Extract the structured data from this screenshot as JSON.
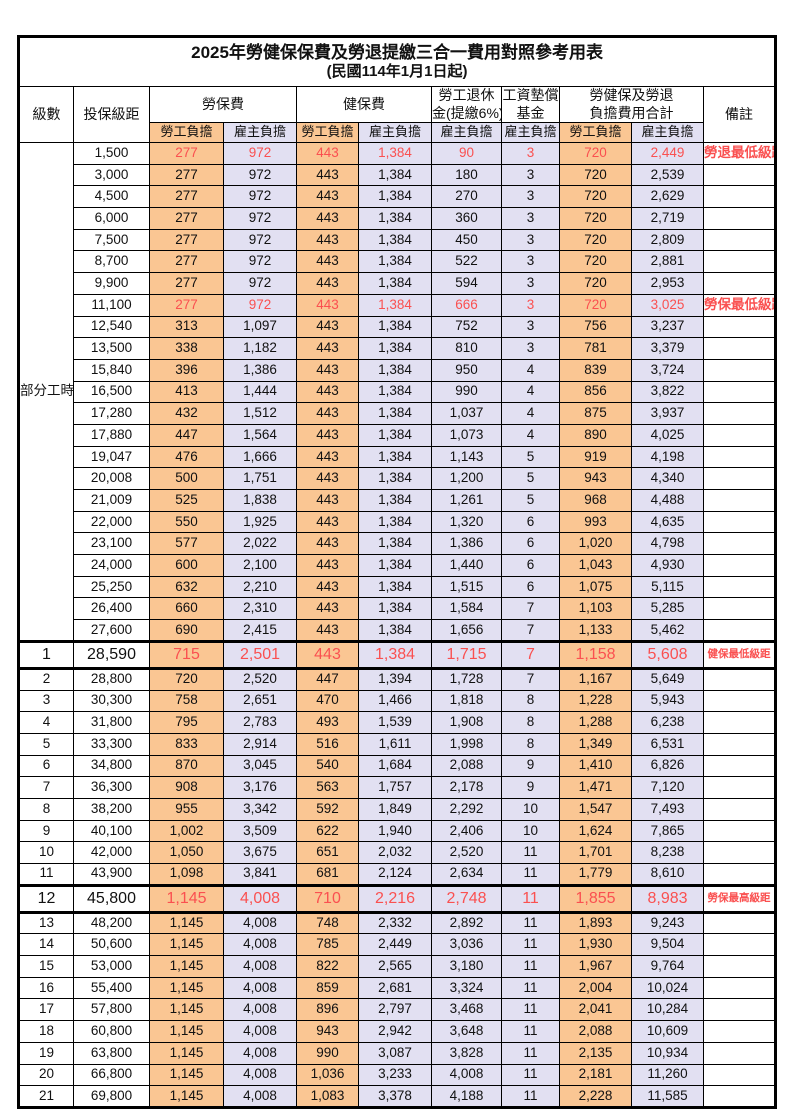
{
  "title": "2025年勞健保保費及勞退提繳三合一費用對照參考用表",
  "subtitle": "(民國114年1月1日起)",
  "colors": {
    "employee_bg": "#FAC693",
    "employer_bg": "#E2E0F2",
    "highlight_text": "#FA5050",
    "border": "#000000"
  },
  "header": {
    "level": "級數",
    "salary": "投保級距",
    "groups": {
      "labor": "勞保費",
      "health": "健保費",
      "pension_l1": "勞工退休",
      "pension_l2": "金(提繳6%)",
      "wagefund_l1": "工資墊償",
      "wagefund_l2": "基金",
      "total_l1": "勞健保及勞退",
      "total_l2": "負擔費用合計",
      "note": "備註"
    },
    "sub": {
      "employee": "勞工負擔",
      "employer": "雇主負擔"
    }
  },
  "table": {
    "part_time_label": "部分工時",
    "part_time_row_span": 23,
    "rows": [
      {
        "level": "",
        "salary": "1,500",
        "labor_employee": "277",
        "labor_employer": "972",
        "health_employee": "443",
        "health_employer": "1,384",
        "pension_employer": "90",
        "wagefund_employer": "3",
        "total_employee": "720",
        "total_employer": "2,449",
        "note": "勞退最低級距",
        "red": true
      },
      {
        "level": "",
        "salary": "3,000",
        "labor_employee": "277",
        "labor_employer": "972",
        "health_employee": "443",
        "health_employer": "1,384",
        "pension_employer": "180",
        "wagefund_employer": "3",
        "total_employee": "720",
        "total_employer": "2,539"
      },
      {
        "level": "",
        "salary": "4,500",
        "labor_employee": "277",
        "labor_employer": "972",
        "health_employee": "443",
        "health_employer": "1,384",
        "pension_employer": "270",
        "wagefund_employer": "3",
        "total_employee": "720",
        "total_employer": "2,629"
      },
      {
        "level": "",
        "salary": "6,000",
        "labor_employee": "277",
        "labor_employer": "972",
        "health_employee": "443",
        "health_employer": "1,384",
        "pension_employer": "360",
        "wagefund_employer": "3",
        "total_employee": "720",
        "total_employer": "2,719"
      },
      {
        "level": "",
        "salary": "7,500",
        "labor_employee": "277",
        "labor_employer": "972",
        "health_employee": "443",
        "health_employer": "1,384",
        "pension_employer": "450",
        "wagefund_employer": "3",
        "total_employee": "720",
        "total_employer": "2,809"
      },
      {
        "level": "",
        "salary": "8,700",
        "labor_employee": "277",
        "labor_employer": "972",
        "health_employee": "443",
        "health_employer": "1,384",
        "pension_employer": "522",
        "wagefund_employer": "3",
        "total_employee": "720",
        "total_employer": "2,881"
      },
      {
        "level": "",
        "salary": "9,900",
        "labor_employee": "277",
        "labor_employer": "972",
        "health_employee": "443",
        "health_employer": "1,384",
        "pension_employer": "594",
        "wagefund_employer": "3",
        "total_employee": "720",
        "total_employer": "2,953"
      },
      {
        "level": "",
        "salary": "11,100",
        "labor_employee": "277",
        "labor_employer": "972",
        "health_employee": "443",
        "health_employer": "1,384",
        "pension_employer": "666",
        "wagefund_employer": "3",
        "total_employee": "720",
        "total_employer": "3,025",
        "note": "勞保最低級距",
        "red": true
      },
      {
        "level": "",
        "salary": "12,540",
        "labor_employee": "313",
        "labor_employer": "1,097",
        "health_employee": "443",
        "health_employer": "1,384",
        "pension_employer": "752",
        "wagefund_employer": "3",
        "total_employee": "756",
        "total_employer": "3,237"
      },
      {
        "level": "",
        "salary": "13,500",
        "labor_employee": "338",
        "labor_employer": "1,182",
        "health_employee": "443",
        "health_employer": "1,384",
        "pension_employer": "810",
        "wagefund_employer": "3",
        "total_employee": "781",
        "total_employer": "3,379"
      },
      {
        "level": "",
        "salary": "15,840",
        "labor_employee": "396",
        "labor_employer": "1,386",
        "health_employee": "443",
        "health_employer": "1,384",
        "pension_employer": "950",
        "wagefund_employer": "4",
        "total_employee": "839",
        "total_employer": "3,724"
      },
      {
        "level": "",
        "salary": "16,500",
        "labor_employee": "413",
        "labor_employer": "1,444",
        "health_employee": "443",
        "health_employer": "1,384",
        "pension_employer": "990",
        "wagefund_employer": "4",
        "total_employee": "856",
        "total_employer": "3,822"
      },
      {
        "level": "",
        "salary": "17,280",
        "labor_employee": "432",
        "labor_employer": "1,512",
        "health_employee": "443",
        "health_employer": "1,384",
        "pension_employer": "1,037",
        "wagefund_employer": "4",
        "total_employee": "875",
        "total_employer": "3,937"
      },
      {
        "level": "",
        "salary": "17,880",
        "labor_employee": "447",
        "labor_employer": "1,564",
        "health_employee": "443",
        "health_employer": "1,384",
        "pension_employer": "1,073",
        "wagefund_employer": "4",
        "total_employee": "890",
        "total_employer": "4,025"
      },
      {
        "level": "",
        "salary": "19,047",
        "labor_employee": "476",
        "labor_employer": "1,666",
        "health_employee": "443",
        "health_employer": "1,384",
        "pension_employer": "1,143",
        "wagefund_employer": "5",
        "total_employee": "919",
        "total_employer": "4,198"
      },
      {
        "level": "",
        "salary": "20,008",
        "labor_employee": "500",
        "labor_employer": "1,751",
        "health_employee": "443",
        "health_employer": "1,384",
        "pension_employer": "1,200",
        "wagefund_employer": "5",
        "total_employee": "943",
        "total_employer": "4,340"
      },
      {
        "level": "",
        "salary": "21,009",
        "labor_employee": "525",
        "labor_employer": "1,838",
        "health_employee": "443",
        "health_employer": "1,384",
        "pension_employer": "1,261",
        "wagefund_employer": "5",
        "total_employee": "968",
        "total_employer": "4,488"
      },
      {
        "level": "",
        "salary": "22,000",
        "labor_employee": "550",
        "labor_employer": "1,925",
        "health_employee": "443",
        "health_employer": "1,384",
        "pension_employer": "1,320",
        "wagefund_employer": "6",
        "total_employee": "993",
        "total_employer": "4,635"
      },
      {
        "level": "",
        "salary": "23,100",
        "labor_employee": "577",
        "labor_employer": "2,022",
        "health_employee": "443",
        "health_employer": "1,384",
        "pension_employer": "1,386",
        "wagefund_employer": "6",
        "total_employee": "1,020",
        "total_employer": "4,798"
      },
      {
        "level": "",
        "salary": "24,000",
        "labor_employee": "600",
        "labor_employer": "2,100",
        "health_employee": "443",
        "health_employer": "1,384",
        "pension_employer": "1,440",
        "wagefund_employer": "6",
        "total_employee": "1,043",
        "total_employer": "4,930"
      },
      {
        "level": "",
        "salary": "25,250",
        "labor_employee": "632",
        "labor_employer": "2,210",
        "health_employee": "443",
        "health_employer": "1,384",
        "pension_employer": "1,515",
        "wagefund_employer": "6",
        "total_employee": "1,075",
        "total_employer": "5,115"
      },
      {
        "level": "",
        "salary": "26,400",
        "labor_employee": "660",
        "labor_employer": "2,310",
        "health_employee": "443",
        "health_employer": "1,384",
        "pension_employer": "1,584",
        "wagefund_employer": "7",
        "total_employee": "1,103",
        "total_employer": "5,285"
      },
      {
        "level": "",
        "salary": "27,600",
        "labor_employee": "690",
        "labor_employer": "2,415",
        "health_employee": "443",
        "health_employer": "1,384",
        "pension_employer": "1,656",
        "wagefund_employer": "7",
        "total_employee": "1,133",
        "total_employer": "5,462"
      },
      {
        "level": "1",
        "salary": "28,590",
        "labor_employee": "715",
        "labor_employer": "2,501",
        "health_employee": "443",
        "health_employer": "1,384",
        "pension_employer": "1,715",
        "wagefund_employer": "7",
        "total_employee": "1,158",
        "total_employer": "5,608",
        "note": "健保最低級距",
        "red": true,
        "special": true
      },
      {
        "level": "2",
        "salary": "28,800",
        "labor_employee": "720",
        "labor_employer": "2,520",
        "health_employee": "447",
        "health_employer": "1,394",
        "pension_employer": "1,728",
        "wagefund_employer": "7",
        "total_employee": "1,167",
        "total_employer": "5,649"
      },
      {
        "level": "3",
        "salary": "30,300",
        "labor_employee": "758",
        "labor_employer": "2,651",
        "health_employee": "470",
        "health_employer": "1,466",
        "pension_employer": "1,818",
        "wagefund_employer": "8",
        "total_employee": "1,228",
        "total_employer": "5,943"
      },
      {
        "level": "4",
        "salary": "31,800",
        "labor_employee": "795",
        "labor_employer": "2,783",
        "health_employee": "493",
        "health_employer": "1,539",
        "pension_employer": "1,908",
        "wagefund_employer": "8",
        "total_employee": "1,288",
        "total_employer": "6,238"
      },
      {
        "level": "5",
        "salary": "33,300",
        "labor_employee": "833",
        "labor_employer": "2,914",
        "health_employee": "516",
        "health_employer": "1,611",
        "pension_employer": "1,998",
        "wagefund_employer": "8",
        "total_employee": "1,349",
        "total_employer": "6,531"
      },
      {
        "level": "6",
        "salary": "34,800",
        "labor_employee": "870",
        "labor_employer": "3,045",
        "health_employee": "540",
        "health_employer": "1,684",
        "pension_employer": "2,088",
        "wagefund_employer": "9",
        "total_employee": "1,410",
        "total_employer": "6,826"
      },
      {
        "level": "7",
        "salary": "36,300",
        "labor_employee": "908",
        "labor_employer": "3,176",
        "health_employee": "563",
        "health_employer": "1,757",
        "pension_employer": "2,178",
        "wagefund_employer": "9",
        "total_employee": "1,471",
        "total_employer": "7,120"
      },
      {
        "level": "8",
        "salary": "38,200",
        "labor_employee": "955",
        "labor_employer": "3,342",
        "health_employee": "592",
        "health_employer": "1,849",
        "pension_employer": "2,292",
        "wagefund_employer": "10",
        "total_employee": "1,547",
        "total_employer": "7,493"
      },
      {
        "level": "9",
        "salary": "40,100",
        "labor_employee": "1,002",
        "labor_employer": "3,509",
        "health_employee": "622",
        "health_employer": "1,940",
        "pension_employer": "2,406",
        "wagefund_employer": "10",
        "total_employee": "1,624",
        "total_employer": "7,865"
      },
      {
        "level": "10",
        "salary": "42,000",
        "labor_employee": "1,050",
        "labor_employer": "3,675",
        "health_employee": "651",
        "health_employer": "2,032",
        "pension_employer": "2,520",
        "wagefund_employer": "11",
        "total_employee": "1,701",
        "total_employer": "8,238"
      },
      {
        "level": "11",
        "salary": "43,900",
        "labor_employee": "1,098",
        "labor_employer": "3,841",
        "health_employee": "681",
        "health_employer": "2,124",
        "pension_employer": "2,634",
        "wagefund_employer": "11",
        "total_employee": "1,779",
        "total_employer": "8,610"
      },
      {
        "level": "12",
        "salary": "45,800",
        "labor_employee": "1,145",
        "labor_employer": "4,008",
        "health_employee": "710",
        "health_employer": "2,216",
        "pension_employer": "2,748",
        "wagefund_employer": "11",
        "total_employee": "1,855",
        "total_employer": "8,983",
        "note": "勞保最高級距",
        "red": true,
        "special": true
      },
      {
        "level": "13",
        "salary": "48,200",
        "labor_employee": "1,145",
        "labor_employer": "4,008",
        "health_employee": "748",
        "health_employer": "2,332",
        "pension_employer": "2,892",
        "wagefund_employer": "11",
        "total_employee": "1,893",
        "total_employer": "9,243"
      },
      {
        "level": "14",
        "salary": "50,600",
        "labor_employee": "1,145",
        "labor_employer": "4,008",
        "health_employee": "785",
        "health_employer": "2,449",
        "pension_employer": "3,036",
        "wagefund_employer": "11",
        "total_employee": "1,930",
        "total_employer": "9,504"
      },
      {
        "level": "15",
        "salary": "53,000",
        "labor_employee": "1,145",
        "labor_employer": "4,008",
        "health_employee": "822",
        "health_employer": "2,565",
        "pension_employer": "3,180",
        "wagefund_employer": "11",
        "total_employee": "1,967",
        "total_employer": "9,764"
      },
      {
        "level": "16",
        "salary": "55,400",
        "labor_employee": "1,145",
        "labor_employer": "4,008",
        "health_employee": "859",
        "health_employer": "2,681",
        "pension_employer": "3,324",
        "wagefund_employer": "11",
        "total_employee": "2,004",
        "total_employer": "10,024"
      },
      {
        "level": "17",
        "salary": "57,800",
        "labor_employee": "1,145",
        "labor_employer": "4,008",
        "health_employee": "896",
        "health_employer": "2,797",
        "pension_employer": "3,468",
        "wagefund_employer": "11",
        "total_employee": "2,041",
        "total_employer": "10,284"
      },
      {
        "level": "18",
        "salary": "60,800",
        "labor_employee": "1,145",
        "labor_employer": "4,008",
        "health_employee": "943",
        "health_employer": "2,942",
        "pension_employer": "3,648",
        "wagefund_employer": "11",
        "total_employee": "2,088",
        "total_employer": "10,609"
      },
      {
        "level": "19",
        "salary": "63,800",
        "labor_employee": "1,145",
        "labor_employer": "4,008",
        "health_employee": "990",
        "health_employer": "3,087",
        "pension_employer": "3,828",
        "wagefund_employer": "11",
        "total_employee": "2,135",
        "total_employer": "10,934"
      },
      {
        "level": "20",
        "salary": "66,800",
        "labor_employee": "1,145",
        "labor_employer": "4,008",
        "health_employee": "1,036",
        "health_employer": "3,233",
        "pension_employer": "4,008",
        "wagefund_employer": "11",
        "total_employee": "2,181",
        "total_employer": "11,260"
      },
      {
        "level": "21",
        "salary": "69,800",
        "labor_employee": "1,145",
        "labor_employer": "4,008",
        "health_employee": "1,083",
        "health_employer": "3,378",
        "pension_employer": "4,188",
        "wagefund_employer": "11",
        "total_employee": "2,228",
        "total_employer": "11,585"
      }
    ]
  }
}
